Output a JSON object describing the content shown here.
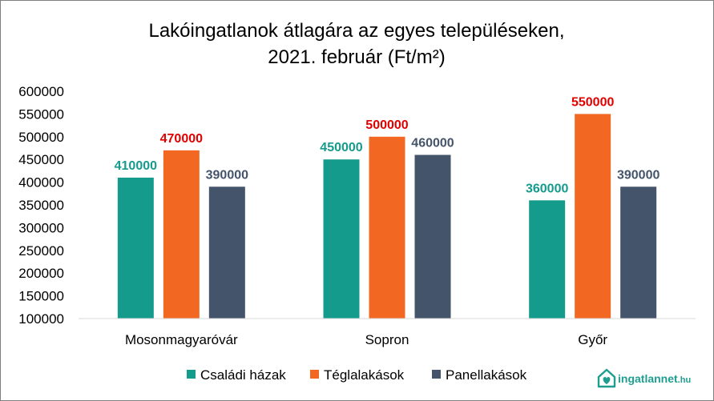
{
  "chart_data": {
    "type": "bar",
    "title": "Lakóingatlanok átlagára az egyes településeken,",
    "subtitle": "2021. február (Ft/m²)",
    "categories": [
      "Mosonmagyaróvár",
      "Sopron",
      "Győr"
    ],
    "series": [
      {
        "name": "Családi házak",
        "color": "#159b8c",
        "label_color": "#159b8c",
        "values": [
          410000,
          450000,
          360000
        ]
      },
      {
        "name": "Téglalakások",
        "color": "#f26722",
        "label_color": "#e00000",
        "values": [
          470000,
          500000,
          550000
        ]
      },
      {
        "name": "Panellakások",
        "color": "#44546a",
        "label_color": "#44546a",
        "values": [
          390000,
          460000,
          390000
        ]
      }
    ],
    "ylim": [
      100000,
      600000
    ],
    "yticks": [
      100000,
      150000,
      200000,
      250000,
      300000,
      350000,
      400000,
      450000,
      500000,
      550000,
      600000
    ],
    "grid": false,
    "legend_position": "bottom"
  },
  "logo": {
    "text": "ingatlannet",
    "suffix": ".hu",
    "icon": "house-heart-icon"
  }
}
